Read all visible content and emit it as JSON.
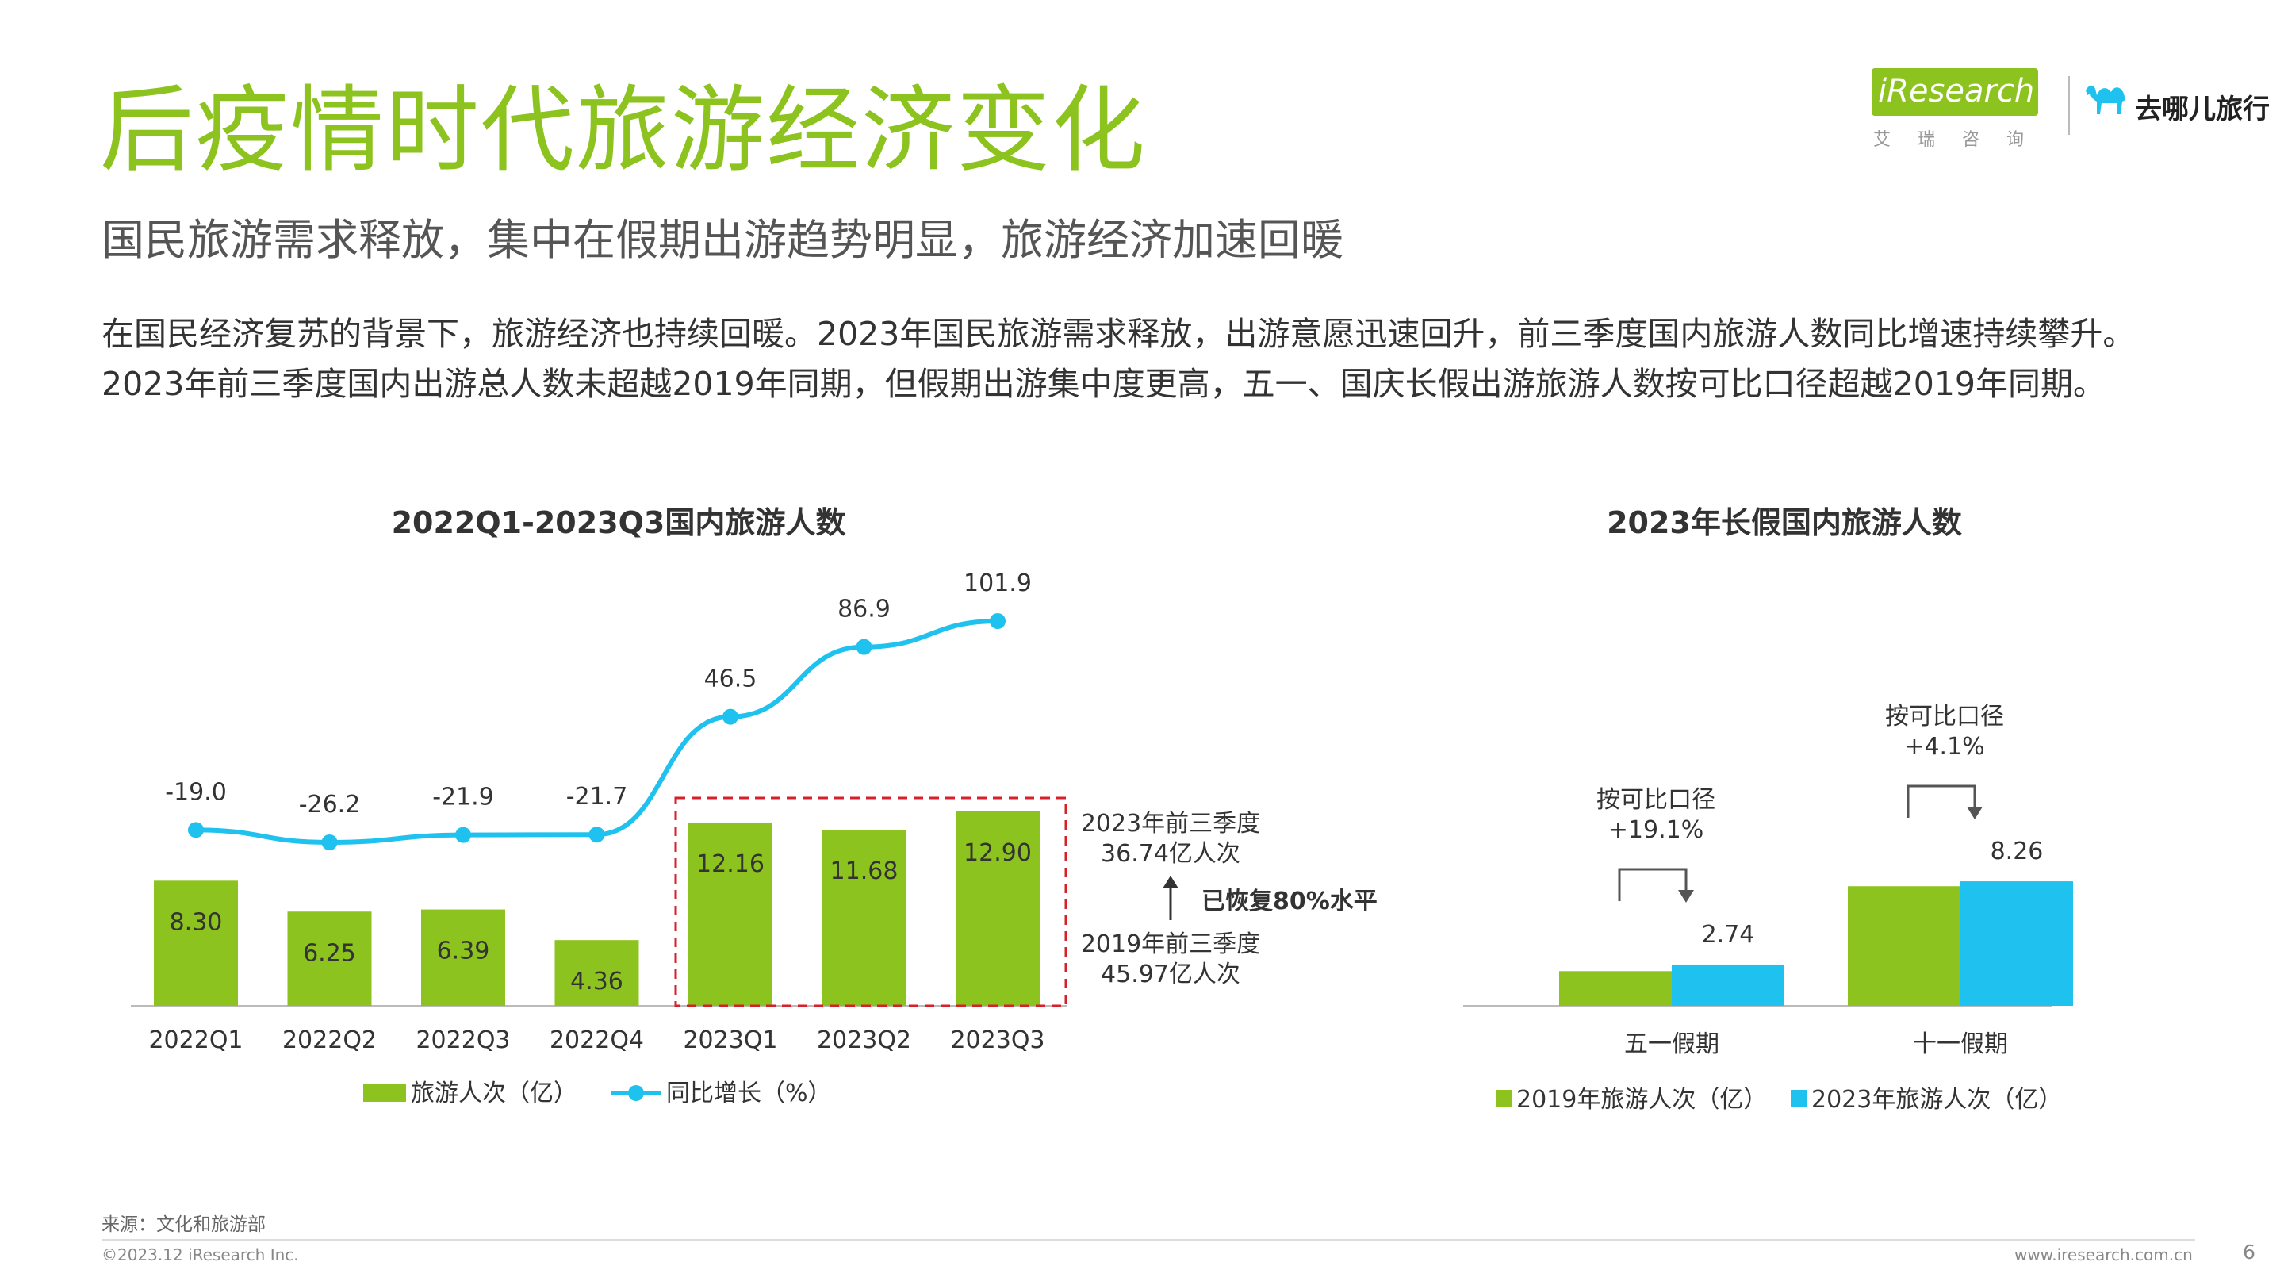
{
  "header": {
    "title": "后疫情时代旅游经济变化",
    "subtitle": "国民旅游需求释放，集中在假期出游趋势明显，旅游经济加速回暖",
    "intro_lines": [
      "在国民经济复苏的背景下，旅游经济也持续回暖。2023年国民旅游需求释放，出游意愿迅速回升，前三季度国内旅游人数同比增速持续攀升。",
      "2023年前三季度国内出游总人数未超越2019年同期，但假期出游集中度更高，五一、国庆长假出游旅游人数按可比口径超越2019年同期。"
    ]
  },
  "logos": {
    "iresearch": "iResearch",
    "iresearch_cn": "艾瑞咨询",
    "qunar": "去哪儿旅行"
  },
  "colors": {
    "green": "#8dc31e",
    "blue": "#1fc2ee",
    "red_dashed": "#d6212a",
    "axis": "#bbbbbb"
  },
  "chart_data": [
    {
      "type": "bar",
      "title": "2022Q1-2023Q3国内旅游人数",
      "categories": [
        "2022Q1",
        "2022Q2",
        "2022Q3",
        "2022Q4",
        "2023Q1",
        "2023Q2",
        "2023Q3"
      ],
      "series": [
        {
          "name": "旅游人次（亿）",
          "type": "bar",
          "values": [
            8.3,
            6.25,
            6.39,
            4.36,
            12.16,
            11.68,
            12.9
          ],
          "labels": [
            "8.30",
            "6.25",
            "6.39",
            "4.36",
            "12.16",
            "11.68",
            "12.90"
          ]
        },
        {
          "name": "同比增长（%）",
          "type": "line",
          "values": [
            -19.0,
            -26.2,
            -21.9,
            -21.7,
            46.5,
            86.9,
            101.9
          ],
          "labels": [
            "-19.0",
            "-26.2",
            "-21.9",
            "-21.7",
            "46.5",
            "86.9",
            "101.9"
          ]
        }
      ],
      "annotations": {
        "box_2023_q1_q3": true,
        "upper_line1": "2023年前三季度",
        "upper_line2": "36.74亿人次",
        "lower_line1": "2019年前三季度",
        "lower_line2": "45.97亿人次",
        "recovery": "已恢复80%水平"
      },
      "legend_position": "bottom"
    },
    {
      "type": "bar",
      "title": "2023年长假国内旅游人数",
      "categories": [
        "五一假期",
        "十一假期"
      ],
      "series": [
        {
          "name": "2019年旅游人次（亿）",
          "values": [
            null,
            null
          ]
        },
        {
          "name": "2023年旅游人次（亿）",
          "values": [
            2.74,
            8.26
          ],
          "labels": [
            "2.74",
            "8.26"
          ]
        }
      ],
      "comparisons": [
        {
          "line1": "按可比口径",
          "line2": "+19.1%"
        },
        {
          "line1": "按可比口径",
          "line2": "+4.1%"
        }
      ],
      "legend_position": "bottom"
    }
  ],
  "footer": {
    "source": "来源：文化和旅游部",
    "copyright": "©2023.12 iResearch Inc.",
    "site": "www.iresearch.com.cn",
    "page": "6"
  }
}
